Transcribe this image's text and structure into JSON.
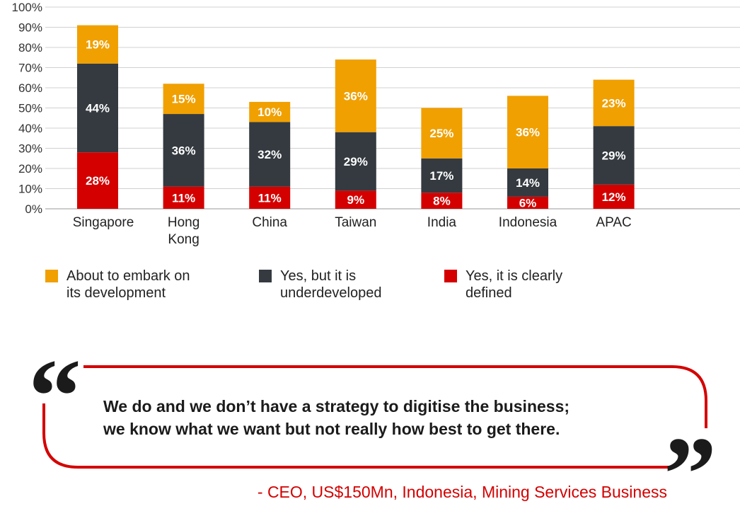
{
  "chart_data": {
    "type": "bar",
    "stacked": true,
    "categories": [
      "Singapore",
      "Hong Kong",
      "China",
      "Taiwan",
      "India",
      "Indonesia",
      "APAC"
    ],
    "category_lines": [
      [
        "Singapore"
      ],
      [
        "Hong",
        "Kong"
      ],
      [
        "China"
      ],
      [
        "Taiwan"
      ],
      [
        "India"
      ],
      [
        "Indonesia"
      ],
      [
        "APAC"
      ]
    ],
    "series": [
      {
        "name": "Yes, it is clearly defined",
        "color": "#d40000",
        "values": [
          28,
          11,
          11,
          9,
          8,
          6,
          12
        ]
      },
      {
        "name": "Yes, but it is underdeveloped",
        "color": "#343a40",
        "values": [
          44,
          36,
          32,
          29,
          17,
          14,
          29
        ]
      },
      {
        "name": "About to embark on its development",
        "color": "#f0a000",
        "values": [
          19,
          15,
          10,
          36,
          25,
          36,
          23
        ]
      }
    ],
    "value_suffix": "%",
    "ylim": [
      0,
      100
    ],
    "yticks": [
      "0%",
      "10%",
      "20%",
      "30%",
      "40%",
      "50%",
      "60%",
      "70%",
      "80%",
      "90%",
      "100%"
    ],
    "grid": true,
    "legend_position": "bottom"
  },
  "legend": [
    {
      "label_lines": [
        "About to embark on",
        "its development"
      ],
      "color": "#f0a000"
    },
    {
      "label_lines": [
        "Yes, but it is",
        "underdeveloped"
      ],
      "color": "#343a40"
    },
    {
      "label_lines": [
        "Yes, it is clearly",
        "defined"
      ],
      "color": "#d40000"
    }
  ],
  "quote": {
    "line1": "We do and we don’t have a strategy to digitise the business;",
    "line2": "we know what we want but not really how best to get there.",
    "attribution": "- CEO, US$150Mn, Indonesia, Mining Services Business",
    "accent_color": "#d40000"
  }
}
